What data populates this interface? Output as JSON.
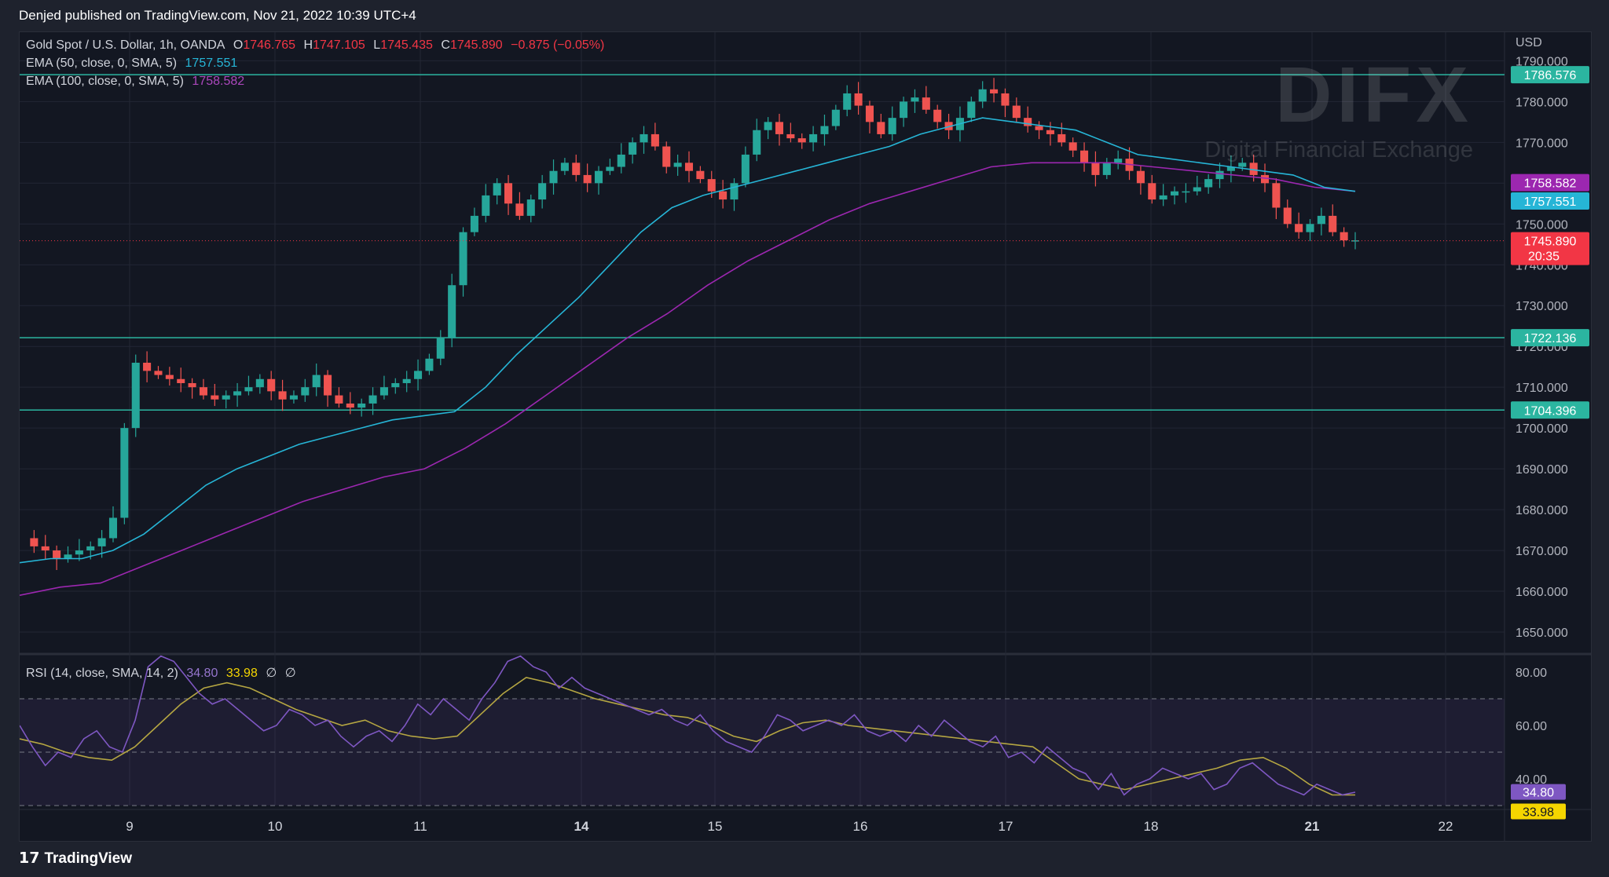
{
  "publisher": "Denjed published on TradingView.com, Nov 21, 2022 10:39 UTC+4",
  "footer": {
    "brand": "TradingView"
  },
  "watermark": {
    "title": "DIFX",
    "subtitle": "Digital Financial Exchange"
  },
  "legend": {
    "symbol": "Gold Spot / U.S. Dollar, 1h, OANDA",
    "ohlc": {
      "o_label": "O",
      "o": "1746.765",
      "h_label": "H",
      "h": "1747.105",
      "l_label": "L",
      "l": "1745.435",
      "c_label": "C",
      "c": "1745.890",
      "change": "−0.875 (−0.05%)"
    },
    "ema50": {
      "label": "EMA (50, close, 0, SMA, 5)",
      "value": "1757.551"
    },
    "ema100": {
      "label": "EMA (100, close, 0, SMA, 5)",
      "value": "1758.582"
    },
    "rsi": {
      "label": "RSI (14, close, SMA, 14, 2)",
      "value": "34.80",
      "sma_value": "33.98",
      "extra1": "∅",
      "extra2": "∅"
    }
  },
  "colors": {
    "up": "#26a69a",
    "down": "#ef5350",
    "ema50": "#26b5d6",
    "ema100": "#9c27b0",
    "rsi": "#7e57c2",
    "rsi_ma": "#b5a642",
    "level": "#2bb5a0"
  },
  "chart_data": [
    {
      "type": "candlestick",
      "currency_label": "USD",
      "x_ticks": [
        "9",
        "10",
        "11",
        "14",
        "15",
        "16",
        "17",
        "18",
        "21",
        "22"
      ],
      "y_ticks": [
        "1650.000",
        "1660.000",
        "1670.000",
        "1680.000",
        "1690.000",
        "1700.000",
        "1710.000",
        "1720.000",
        "1730.000",
        "1740.000",
        "1750.000",
        "1760.000",
        "1770.000",
        "1780.000",
        "1790.000"
      ],
      "ylim": [
        1645,
        1797
      ],
      "horizontal_levels": [
        {
          "value": 1786.576,
          "label": "1786.576"
        },
        {
          "value": 1722.136,
          "label": "1722.136"
        },
        {
          "value": 1704.396,
          "label": "1704.396"
        }
      ],
      "price_tags": [
        {
          "value": 1758.582,
          "label": "1758.582",
          "color": "#9c27b0"
        },
        {
          "value": 1757.551,
          "label": "1757.551",
          "color": "#26b5d6"
        }
      ],
      "last_price": {
        "value": 1745.89,
        "label": "1745.890",
        "countdown": "20:35",
        "color": "#f23645"
      },
      "price_path": [
        1673,
        1671,
        1670,
        1668,
        1669,
        1670,
        1671,
        1673,
        1678,
        1700,
        1716,
        1714,
        1713,
        1712,
        1711,
        1710,
        1708,
        1707,
        1708,
        1709,
        1710,
        1712,
        1709,
        1707,
        1708,
        1710,
        1713,
        1708,
        1706,
        1705,
        1706,
        1708,
        1710,
        1711,
        1712,
        1714,
        1717,
        1722,
        1735,
        1748,
        1752,
        1757,
        1760,
        1755,
        1752,
        1756,
        1760,
        1763,
        1765,
        1762,
        1760,
        1763,
        1764,
        1767,
        1770,
        1772,
        1769,
        1764,
        1765,
        1763,
        1761,
        1758,
        1756,
        1760,
        1767,
        1773,
        1775,
        1772,
        1771,
        1770,
        1772,
        1774,
        1778,
        1782,
        1779,
        1775,
        1772,
        1776,
        1780,
        1781,
        1778,
        1775,
        1773,
        1776,
        1780,
        1783,
        1782,
        1779,
        1776,
        1774,
        1773,
        1772,
        1770,
        1768,
        1765,
        1762,
        1765,
        1766,
        1763,
        1760,
        1756,
        1757,
        1758,
        1758,
        1759,
        1761,
        1763,
        1764,
        1765,
        1762,
        1760,
        1754,
        1750,
        1748,
        1750,
        1752,
        1748,
        1746,
        1746
      ],
      "ema50_series": [
        1667,
        1668,
        1668,
        1670,
        1674,
        1680,
        1686,
        1690,
        1693,
        1696,
        1698,
        1700,
        1702,
        1703,
        1704,
        1710,
        1718,
        1725,
        1732,
        1740,
        1748,
        1754,
        1757,
        1759,
        1761,
        1763,
        1765,
        1767,
        1769,
        1772,
        1774,
        1776,
        1775,
        1774,
        1773,
        1770,
        1767,
        1766,
        1765,
        1764,
        1763,
        1762,
        1759,
        1758
      ],
      "ema100_series": [
        1659,
        1661,
        1662,
        1666,
        1670,
        1674,
        1678,
        1682,
        1685,
        1688,
        1690,
        1695,
        1701,
        1708,
        1715,
        1722,
        1728,
        1735,
        1741,
        1746,
        1751,
        1755,
        1758,
        1761,
        1764,
        1765,
        1765,
        1765,
        1764,
        1763,
        1762,
        1761,
        1759,
        1758
      ],
      "rsi_panel": {
        "y_ticks": [
          "40.00",
          "60.00",
          "80.00"
        ],
        "ylim": [
          30,
          85
        ],
        "bands": [
          30,
          50,
          70
        ],
        "rsi_series": [
          60,
          52,
          45,
          50,
          48,
          55,
          58,
          52,
          50,
          62,
          82,
          86,
          84,
          78,
          72,
          68,
          70,
          66,
          62,
          58,
          60,
          66,
          64,
          60,
          62,
          56,
          52,
          56,
          58,
          54,
          60,
          68,
          64,
          70,
          66,
          62,
          70,
          76,
          84,
          86,
          82,
          80,
          74,
          78,
          74,
          72,
          70,
          68,
          66,
          64,
          66,
          62,
          60,
          64,
          58,
          54,
          52,
          50,
          56,
          64,
          62,
          58,
          60,
          62,
          60,
          64,
          58,
          56,
          58,
          54,
          60,
          56,
          62,
          58,
          54,
          52,
          56,
          48,
          50,
          46,
          52,
          48,
          44,
          42,
          36,
          42,
          34,
          38,
          40,
          44,
          42,
          40,
          42,
          36,
          38,
          44,
          46,
          42,
          38,
          36,
          34,
          38,
          36,
          34,
          35
        ],
        "rsi_ma_series": [
          55,
          53,
          50,
          48,
          47,
          52,
          60,
          68,
          74,
          76,
          74,
          70,
          66,
          63,
          60,
          62,
          58,
          56,
          55,
          56,
          64,
          72,
          78,
          76,
          73,
          70,
          68,
          66,
          64,
          63,
          60,
          56,
          54,
          58,
          61,
          62,
          60,
          59,
          58,
          57,
          56,
          55,
          54,
          53,
          52,
          46,
          40,
          38,
          36,
          38,
          40,
          42,
          44,
          47,
          48,
          44,
          38,
          34,
          33.98
        ]
      }
    }
  ]
}
